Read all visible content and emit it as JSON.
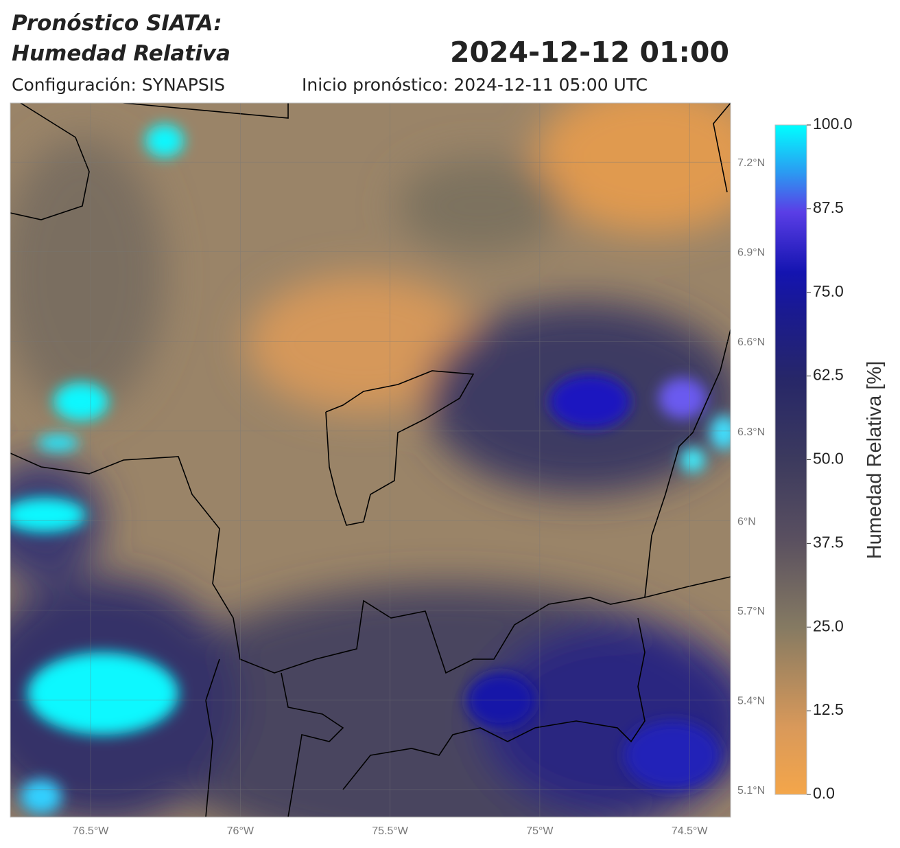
{
  "header": {
    "title_line1": "Pronóstico SIATA:",
    "title_line2": "Humedad Relativa",
    "date": "2024-12-12 01:00",
    "configuration": "Configuración: SYNAPSIS",
    "start": "Inicio pronóstico: 2024-12-11 05:00 UTC"
  },
  "map": {
    "lonlim": [
      -76.768,
      -74.363
    ],
    "latlim": [
      5.008,
      7.398
    ],
    "lon_ticks": [
      {
        "value": -76.5,
        "label": "76.5°W"
      },
      {
        "value": -76,
        "label": "76°W"
      },
      {
        "value": -75.5,
        "label": "75.5°W"
      },
      {
        "value": -75,
        "label": "75°W"
      },
      {
        "value": -74.5,
        "label": "74.5°W"
      }
    ],
    "lat_ticks": [
      {
        "value": 7.2,
        "label": "7.2°N"
      },
      {
        "value": 6.9,
        "label": "6.9°N"
      },
      {
        "value": 6.6,
        "label": "6.6°N"
      },
      {
        "value": 6.3,
        "label": "6.3°N"
      },
      {
        "value": 6,
        "label": "6°N"
      },
      {
        "value": 5.7,
        "label": "5.7°N"
      },
      {
        "value": 5.4,
        "label": "5.4°N"
      },
      {
        "value": 5.1,
        "label": "5.1°N"
      }
    ]
  },
  "colorbar": {
    "label": "Humedad Relativa [%]",
    "lim": [
      0,
      100
    ],
    "ticks": [
      {
        "value": 0,
        "label": "0.0"
      },
      {
        "value": 12.5,
        "label": "12.5"
      },
      {
        "value": 25,
        "label": "25.0"
      },
      {
        "value": 37.5,
        "label": "37.5"
      },
      {
        "value": 50,
        "label": "50.0"
      },
      {
        "value": 62.5,
        "label": "62.5"
      },
      {
        "value": 75,
        "label": "75.0"
      },
      {
        "value": 87.5,
        "label": "87.5"
      },
      {
        "value": 100,
        "label": "100.0"
      }
    ]
  }
}
